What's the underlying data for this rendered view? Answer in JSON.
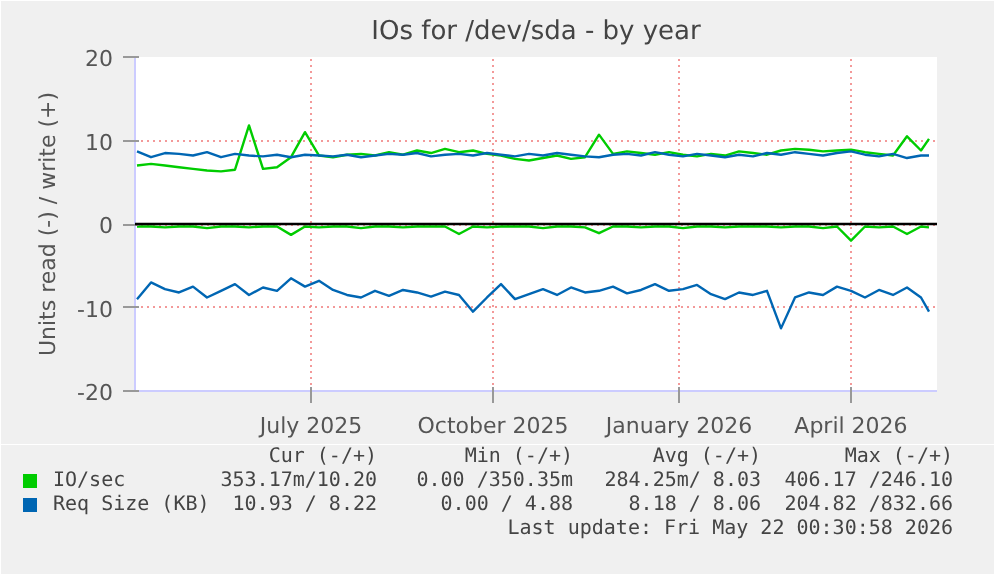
{
  "chart_data": {
    "type": "line",
    "title": "IOs for /dev/sda - by year",
    "ylabel": "Units read (-) / write (+)",
    "x": [
      "2025-04-20",
      "2025-04-27",
      "2025-05-04",
      "2025-05-11",
      "2025-05-18",
      "2025-05-25",
      "2025-06-01",
      "2025-06-08",
      "2025-06-15",
      "2025-06-22",
      "2025-06-29",
      "2025-07-06",
      "2025-07-13",
      "2025-07-20",
      "2025-07-27",
      "2025-08-03",
      "2025-08-10",
      "2025-08-17",
      "2025-08-24",
      "2025-08-31",
      "2025-09-07",
      "2025-09-14",
      "2025-09-21",
      "2025-09-28",
      "2025-10-05",
      "2025-10-12",
      "2025-10-19",
      "2025-10-26",
      "2025-11-02",
      "2025-11-09",
      "2025-11-16",
      "2025-11-23",
      "2025-11-30",
      "2025-12-07",
      "2025-12-14",
      "2025-12-21",
      "2025-12-28",
      "2026-01-04",
      "2026-01-11",
      "2026-01-18",
      "2026-01-25",
      "2026-02-01",
      "2026-02-08",
      "2026-02-15",
      "2026-02-22",
      "2026-03-01",
      "2026-03-08",
      "2026-03-15",
      "2026-03-22",
      "2026-03-29",
      "2026-04-05",
      "2026-04-12",
      "2026-04-19",
      "2026-04-26",
      "2026-05-03",
      "2026-05-10",
      "2026-05-17",
      "2026-05-21"
    ],
    "series": [
      {
        "name": "IO/sec",
        "color": "#00cc00",
        "values": [
          7.0,
          7.2,
          7.0,
          6.8,
          6.6,
          6.4,
          6.3,
          6.5,
          11.8,
          6.6,
          6.8,
          8.0,
          11.0,
          8.2,
          8.0,
          8.3,
          8.4,
          8.2,
          8.6,
          8.3,
          8.8,
          8.5,
          9.0,
          8.6,
          8.8,
          8.4,
          8.2,
          7.8,
          7.6,
          7.9,
          8.2,
          7.8,
          8.0,
          10.7,
          8.4,
          8.7,
          8.5,
          8.3,
          8.6,
          8.3,
          8.1,
          8.4,
          8.2,
          8.7,
          8.5,
          8.3,
          8.8,
          9.0,
          8.9,
          8.7,
          8.8,
          8.9,
          8.6,
          8.4,
          8.2,
          10.5,
          8.8,
          10.2
        ]
      },
      {
        "color": "#00cc00",
        "values": [
          -0.3,
          -0.3,
          -0.4,
          -0.3,
          -0.3,
          -0.5,
          -0.3,
          -0.3,
          -0.4,
          -0.3,
          -0.3,
          -1.3,
          -0.3,
          -0.4,
          -0.3,
          -0.3,
          -0.5,
          -0.3,
          -0.3,
          -0.4,
          -0.3,
          -0.3,
          -0.3,
          -1.2,
          -0.3,
          -0.4,
          -0.3,
          -0.3,
          -0.3,
          -0.5,
          -0.3,
          -0.3,
          -0.4,
          -1.1,
          -0.3,
          -0.3,
          -0.4,
          -0.3,
          -0.3,
          -0.5,
          -0.3,
          -0.3,
          -0.4,
          -0.3,
          -0.3,
          -0.3,
          -0.4,
          -0.3,
          -0.3,
          -0.5,
          -0.3,
          -2.0,
          -0.3,
          -0.4,
          -0.3,
          -1.2,
          -0.3,
          -0.4
        ]
      },
      {
        "name": "Req Size (KB)",
        "color": "#0066b3",
        "values": [
          8.7,
          8.0,
          8.5,
          8.4,
          8.2,
          8.6,
          8.0,
          8.4,
          8.2,
          8.1,
          8.3,
          8.0,
          8.3,
          8.2,
          8.1,
          8.3,
          8.0,
          8.2,
          8.4,
          8.3,
          8.5,
          8.1,
          8.3,
          8.4,
          8.2,
          8.5,
          8.3,
          8.1,
          8.4,
          8.2,
          8.5,
          8.3,
          8.1,
          8.0,
          8.3,
          8.4,
          8.2,
          8.6,
          8.3,
          8.1,
          8.4,
          8.2,
          8.0,
          8.3,
          8.1,
          8.5,
          8.3,
          8.6,
          8.4,
          8.2,
          8.5,
          8.7,
          8.3,
          8.1,
          8.4,
          7.9,
          8.2,
          8.2
        ]
      },
      {
        "color": "#0066b3",
        "values": [
          -9.0,
          -7.0,
          -7.8,
          -8.2,
          -7.5,
          -8.8,
          -8.0,
          -7.2,
          -8.5,
          -7.6,
          -8.0,
          -6.5,
          -7.5,
          -6.8,
          -7.9,
          -8.5,
          -8.8,
          -8.0,
          -8.6,
          -7.9,
          -8.2,
          -8.7,
          -8.1,
          -8.5,
          -10.5,
          -8.8,
          -7.2,
          -9.0,
          -8.4,
          -7.8,
          -8.5,
          -7.6,
          -8.2,
          -8.0,
          -7.5,
          -8.3,
          -7.9,
          -7.2,
          -8.0,
          -7.8,
          -7.3,
          -8.4,
          -9.0,
          -8.2,
          -8.5,
          -8.0,
          -12.5,
          -8.8,
          -8.2,
          -8.5,
          -7.5,
          -8.0,
          -8.8,
          -7.9,
          -8.5,
          -7.6,
          -8.8,
          -10.5
        ]
      }
    ],
    "xlim": [
      "2025-04-19",
      "2026-05-25"
    ],
    "xticks": [
      {
        "value": "2025-07-16",
        "label": "July 2025"
      },
      {
        "value": "2025-10-15",
        "label": "October 2025"
      },
      {
        "value": "2026-01-16",
        "label": "January 2026"
      },
      {
        "value": "2026-04-12",
        "label": "April 2026"
      }
    ],
    "ylim": [
      -20,
      20
    ],
    "yticks": [
      -20,
      -10,
      0,
      10,
      20
    ],
    "ref_lines": [
      {
        "axis": "y",
        "value": 0,
        "color": "#000000"
      }
    ],
    "grid": true,
    "legend": "bottom",
    "marker": "none",
    "line_style": "solid",
    "annotations": [
      "Cur (-/+)",
      "Min (-/+)",
      "Avg (-/+)",
      "Max (-/+)",
      "353.17m/10.20",
      "0.00 /350.35m",
      "284.25m/ 8.03",
      "406.17 /246.10",
      "10.93 / 8.22",
      "0.00 / 4.88",
      "8.18 / 8.06",
      "204.82 /832.66",
      "Last update: Fri May 22 00:30:58 2026"
    ]
  }
}
